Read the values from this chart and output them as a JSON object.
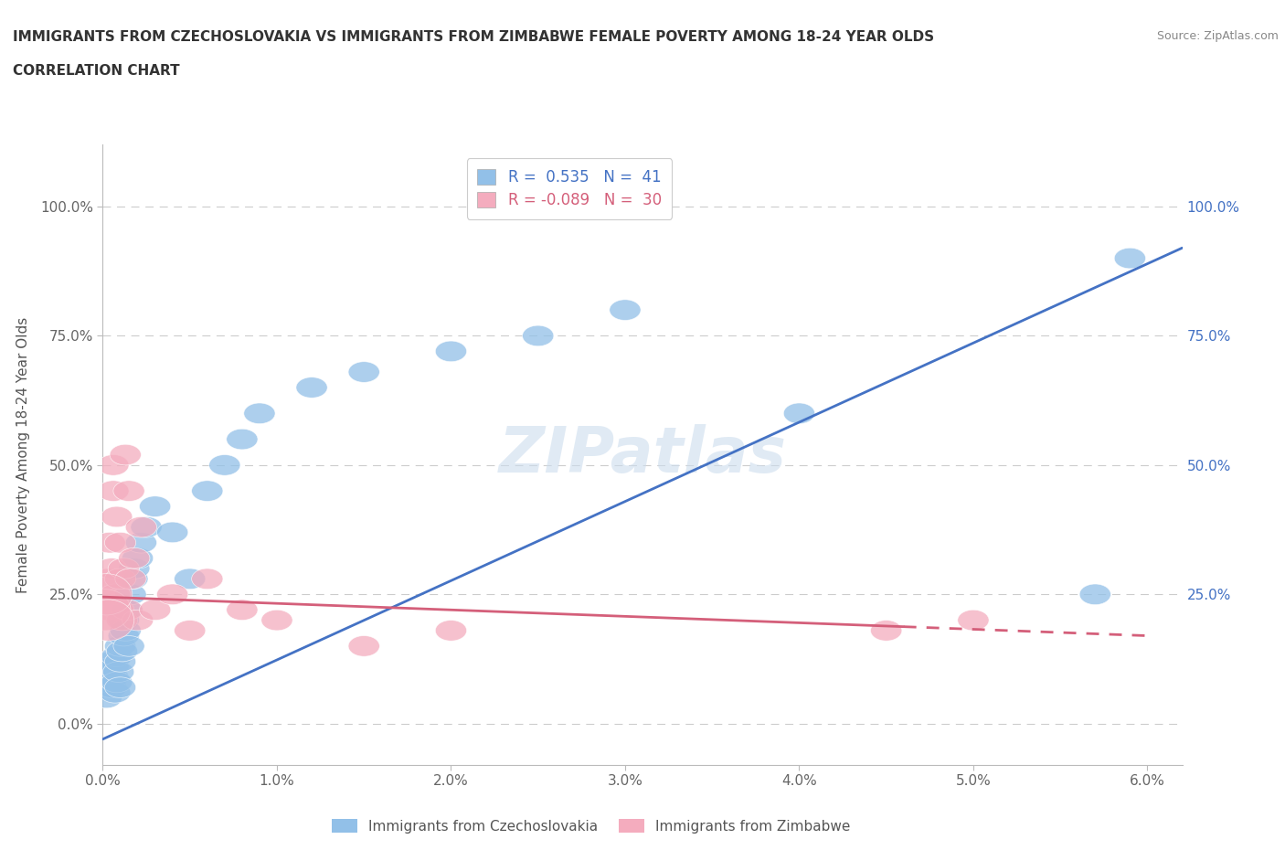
{
  "title_line1": "IMMIGRANTS FROM CZECHOSLOVAKIA VS IMMIGRANTS FROM ZIMBABWE FEMALE POVERTY AMONG 18-24 YEAR OLDS",
  "title_line2": "CORRELATION CHART",
  "source": "Source: ZipAtlas.com",
  "ylabel": "Female Poverty Among 18-24 Year Olds",
  "xlim": [
    0.0,
    0.062
  ],
  "ylim": [
    -0.08,
    1.12
  ],
  "xtick_labels": [
    "0.0%",
    "1.0%",
    "2.0%",
    "3.0%",
    "4.0%",
    "5.0%",
    "6.0%"
  ],
  "xtick_vals": [
    0.0,
    0.01,
    0.02,
    0.03,
    0.04,
    0.05,
    0.06
  ],
  "ytick_labels": [
    "0.0%",
    "25.0%",
    "50.0%",
    "75.0%",
    "100.0%"
  ],
  "ytick_vals": [
    0.0,
    0.25,
    0.5,
    0.75,
    1.0
  ],
  "legend_r1": "R =  0.535   N =  41",
  "legend_r2": "R = -0.089   N =  30",
  "color_czech": "#92C0E8",
  "color_zimb": "#F4ACBE",
  "line_color_czech": "#4472C4",
  "line_color_zimb": "#D45F7A",
  "watermark": "ZIPatlas",
  "czech_x": [
    0.0002,
    0.0003,
    0.0004,
    0.0005,
    0.0005,
    0.0006,
    0.0006,
    0.0007,
    0.0008,
    0.0008,
    0.0009,
    0.001,
    0.001,
    0.001,
    0.0011,
    0.0012,
    0.0012,
    0.0013,
    0.0014,
    0.0015,
    0.0016,
    0.0017,
    0.0018,
    0.002,
    0.0022,
    0.0025,
    0.003,
    0.004,
    0.005,
    0.006,
    0.007,
    0.008,
    0.009,
    0.012,
    0.015,
    0.02,
    0.025,
    0.03,
    0.04,
    0.057,
    0.059
  ],
  "czech_y": [
    0.05,
    0.08,
    0.1,
    0.12,
    0.07,
    0.09,
    0.11,
    0.06,
    0.08,
    0.13,
    0.1,
    0.12,
    0.15,
    0.07,
    0.14,
    0.17,
    0.2,
    0.18,
    0.22,
    0.15,
    0.25,
    0.28,
    0.3,
    0.32,
    0.35,
    0.38,
    0.42,
    0.37,
    0.28,
    0.45,
    0.5,
    0.55,
    0.6,
    0.65,
    0.68,
    0.72,
    0.75,
    0.8,
    0.6,
    0.25,
    0.9
  ],
  "zimb_x": [
    0.0002,
    0.0003,
    0.0004,
    0.0005,
    0.0006,
    0.0006,
    0.0007,
    0.0008,
    0.0009,
    0.001,
    0.001,
    0.0011,
    0.0012,
    0.0013,
    0.0014,
    0.0015,
    0.0016,
    0.0018,
    0.002,
    0.0022,
    0.003,
    0.004,
    0.005,
    0.006,
    0.008,
    0.01,
    0.015,
    0.02,
    0.045,
    0.05
  ],
  "zimb_y": [
    0.22,
    0.28,
    0.35,
    0.3,
    0.45,
    0.5,
    0.25,
    0.4,
    0.22,
    0.28,
    0.35,
    0.2,
    0.3,
    0.52,
    0.22,
    0.45,
    0.28,
    0.32,
    0.2,
    0.38,
    0.22,
    0.25,
    0.18,
    0.28,
    0.22,
    0.2,
    0.15,
    0.18,
    0.18,
    0.2
  ],
  "czech_line_x": [
    0.0,
    0.062
  ],
  "czech_line_y": [
    -0.03,
    0.92
  ],
  "zimb_line_x": [
    0.0,
    0.06
  ],
  "zimb_line_y": [
    0.245,
    0.17
  ]
}
